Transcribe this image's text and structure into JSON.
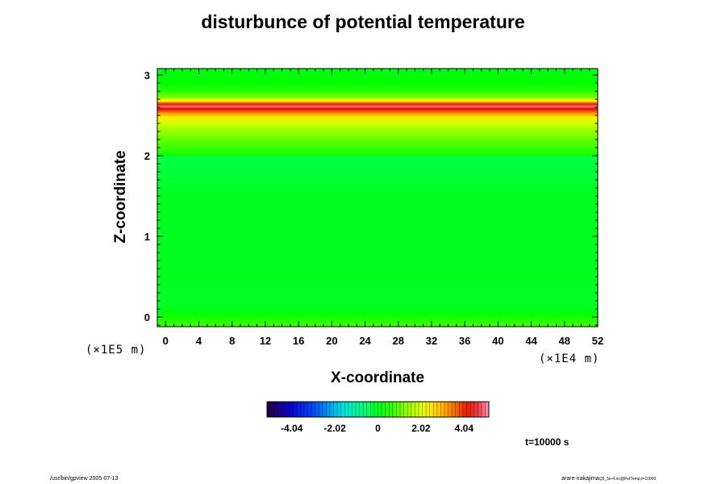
{
  "chart_data": {
    "type": "heatmap",
    "title": "disturbunce of potential temperature",
    "xlabel": "X-coordinate",
    "ylabel": "Z-coordinate",
    "x_unit": "(×1E4 m)",
    "y_unit": "(×1E5 m)",
    "xlim": [
      -1,
      52
    ],
    "ylim": [
      -0.12,
      3.08
    ],
    "x_ticks": [
      0,
      4,
      8,
      12,
      16,
      20,
      24,
      28,
      32,
      36,
      40,
      44,
      48,
      52
    ],
    "x_tick_labels": [
      "0",
      "4",
      "8",
      "12",
      "16",
      "20",
      "24",
      "28",
      "32",
      "36",
      "40",
      "44",
      "48",
      "52"
    ],
    "y_ticks": [
      0,
      1,
      2,
      3
    ],
    "y_tick_labels": [
      "0",
      "1",
      "2",
      "3"
    ],
    "profile_z": [
      -0.12,
      -0.05,
      0.0,
      0.05,
      0.1,
      0.2,
      0.5,
      1.0,
      1.5,
      1.98,
      2.0,
      2.1,
      2.2,
      2.3,
      2.4,
      2.48,
      2.53,
      2.58,
      2.61,
      2.64,
      2.68,
      2.72,
      2.8,
      2.9,
      3.08
    ],
    "profile_value": [
      0.7,
      0.55,
      0.35,
      0.15,
      0.0,
      -0.05,
      0.0,
      0.0,
      0.0,
      -0.3,
      0.3,
      0.7,
      1.0,
      1.4,
      1.9,
      2.5,
      3.4,
      4.4,
      5.0,
      4.2,
      2.3,
      1.2,
      0.5,
      0.2,
      0.1
    ],
    "colorbar": {
      "range": [
        -5.2,
        5.2
      ],
      "ticks": [
        -4.04,
        -2.02,
        0,
        2.02,
        4.04
      ],
      "tick_labels": [
        "-4.04",
        "-2.02",
        "0",
        "2.02",
        "4.04"
      ]
    }
  },
  "annotations": {
    "time": "t=10000 s",
    "footer_left": "/usr/bin/gpview 2005-07-13",
    "footer_right": "arare-nakajima"
  },
  "footer_right_small": "Q5_5e-4.nc@PotTemp,t=10000"
}
